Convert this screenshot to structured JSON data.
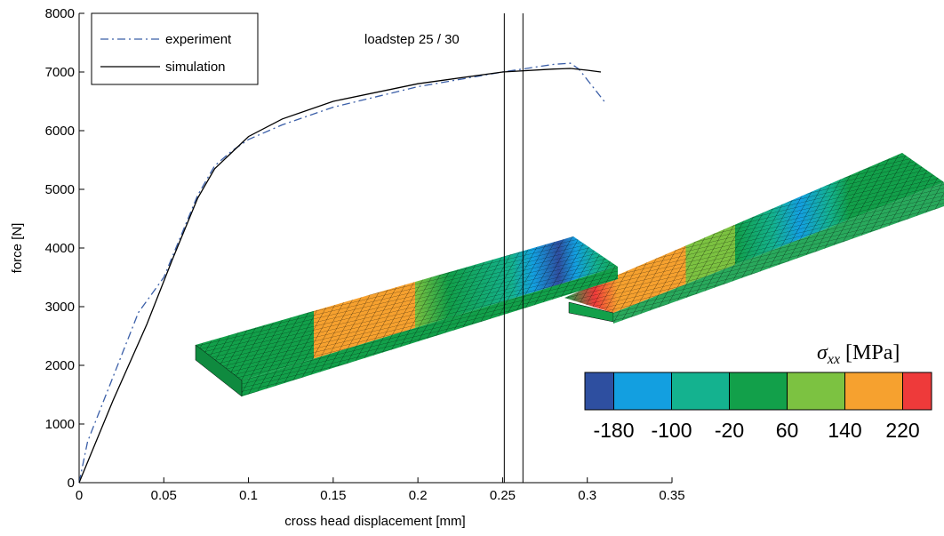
{
  "chart_data": {
    "type": "line",
    "xlabel": "cross head displacement [mm]",
    "ylabel": "force [N]",
    "annotation": "loadstep  25 / 30",
    "xlim": [
      0,
      0.35
    ],
    "xticks": [
      0,
      0.05,
      0.1,
      0.15,
      0.2,
      0.25,
      0.3,
      0.35
    ],
    "ylim": [
      0,
      8000
    ],
    "yticks": [
      0,
      1000,
      2000,
      3000,
      4000,
      5000,
      6000,
      7000,
      8000
    ],
    "legend": "upper left",
    "vlines": [
      0.251,
      0.262
    ],
    "series": [
      {
        "name": "experiment",
        "color": "#3b5fa8",
        "dash": "dashdot",
        "x": [
          0,
          0.005,
          0.02,
          0.035,
          0.05,
          0.06,
          0.07,
          0.08,
          0.09,
          0.1,
          0.12,
          0.15,
          0.2,
          0.25,
          0.28,
          0.29,
          0.295,
          0.31
        ],
        "values": [
          0,
          700,
          1800,
          2900,
          3500,
          4200,
          4900,
          5400,
          5650,
          5850,
          6100,
          6400,
          6750,
          7000,
          7130,
          7150,
          7050,
          6500
        ]
      },
      {
        "name": "simulation",
        "color": "#000000",
        "dash": "solid",
        "x": [
          0,
          0.02,
          0.04,
          0.055,
          0.07,
          0.08,
          0.1,
          0.12,
          0.15,
          0.2,
          0.25,
          0.28,
          0.29,
          0.3,
          0.308
        ],
        "values": [
          0,
          1400,
          2700,
          3800,
          4850,
          5350,
          5900,
          6200,
          6500,
          6800,
          7000,
          7050,
          7060,
          7030,
          7000
        ]
      }
    ],
    "colorbar": {
      "symbol": "σ",
      "subscript": "xx",
      "unit": "[MPa]",
      "lim": [
        -220,
        260
      ],
      "ticks": [
        -180,
        -100,
        -20,
        60,
        140,
        220
      ],
      "colors": [
        "#2e4fa0",
        "#139fe0",
        "#14b28f",
        "#12a04a",
        "#7cc241",
        "#f6a12f",
        "#ee3a3a"
      ]
    }
  }
}
